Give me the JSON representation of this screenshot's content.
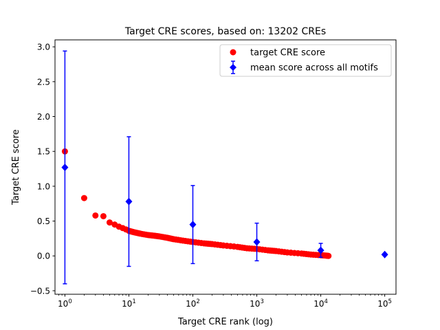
{
  "chart_data": {
    "type": "scatter",
    "title": "Target CRE scores, based on: 13202 CREs",
    "xlabel": "Target CRE rank (log)",
    "ylabel": "Target CRE score",
    "xscale": "log",
    "xlim": [
      0.7,
      150000
    ],
    "ylim": [
      -0.55,
      3.1
    ],
    "yticks": [
      "−0.5",
      "0.0",
      "0.5",
      "1.0",
      "1.5",
      "2.0",
      "2.5",
      "3.0"
    ],
    "xticks": [
      {
        "base": "10",
        "exp": "0"
      },
      {
        "base": "10",
        "exp": "1"
      },
      {
        "base": "10",
        "exp": "2"
      },
      {
        "base": "10",
        "exp": "3"
      },
      {
        "base": "10",
        "exp": "4"
      },
      {
        "base": "10",
        "exp": "5"
      }
    ],
    "grid": false,
    "legend_position": "top-right",
    "colors": {
      "target": "#ff0000",
      "mean": "#0000ff"
    },
    "series": [
      {
        "name": "target CRE score",
        "marker": "circle",
        "x": [
          1,
          2,
          3,
          4,
          5,
          6,
          7,
          8,
          9,
          10,
          12,
          15,
          20,
          25,
          30,
          40,
          50,
          70,
          100,
          150,
          200,
          300,
          500,
          700,
          1000,
          1500,
          2000,
          3000,
          5000,
          7000,
          10000,
          12000,
          13202
        ],
        "y": [
          1.5,
          0.83,
          0.58,
          0.57,
          0.48,
          0.45,
          0.42,
          0.4,
          0.38,
          0.36,
          0.34,
          0.32,
          0.3,
          0.29,
          0.28,
          0.26,
          0.24,
          0.22,
          0.2,
          0.18,
          0.17,
          0.15,
          0.13,
          0.11,
          0.1,
          0.08,
          0.07,
          0.05,
          0.035,
          0.02,
          0.01,
          0.005,
          0.0
        ]
      },
      {
        "name": "mean score across all motifs",
        "marker": "diamond",
        "errorbar": true,
        "x": [
          1,
          10,
          100,
          1000,
          10000,
          100000
        ],
        "y": [
          1.27,
          0.78,
          0.45,
          0.2,
          0.08,
          0.02
        ],
        "err": [
          1.67,
          0.93,
          0.56,
          0.27,
          0.1,
          0.0
        ]
      }
    ]
  }
}
